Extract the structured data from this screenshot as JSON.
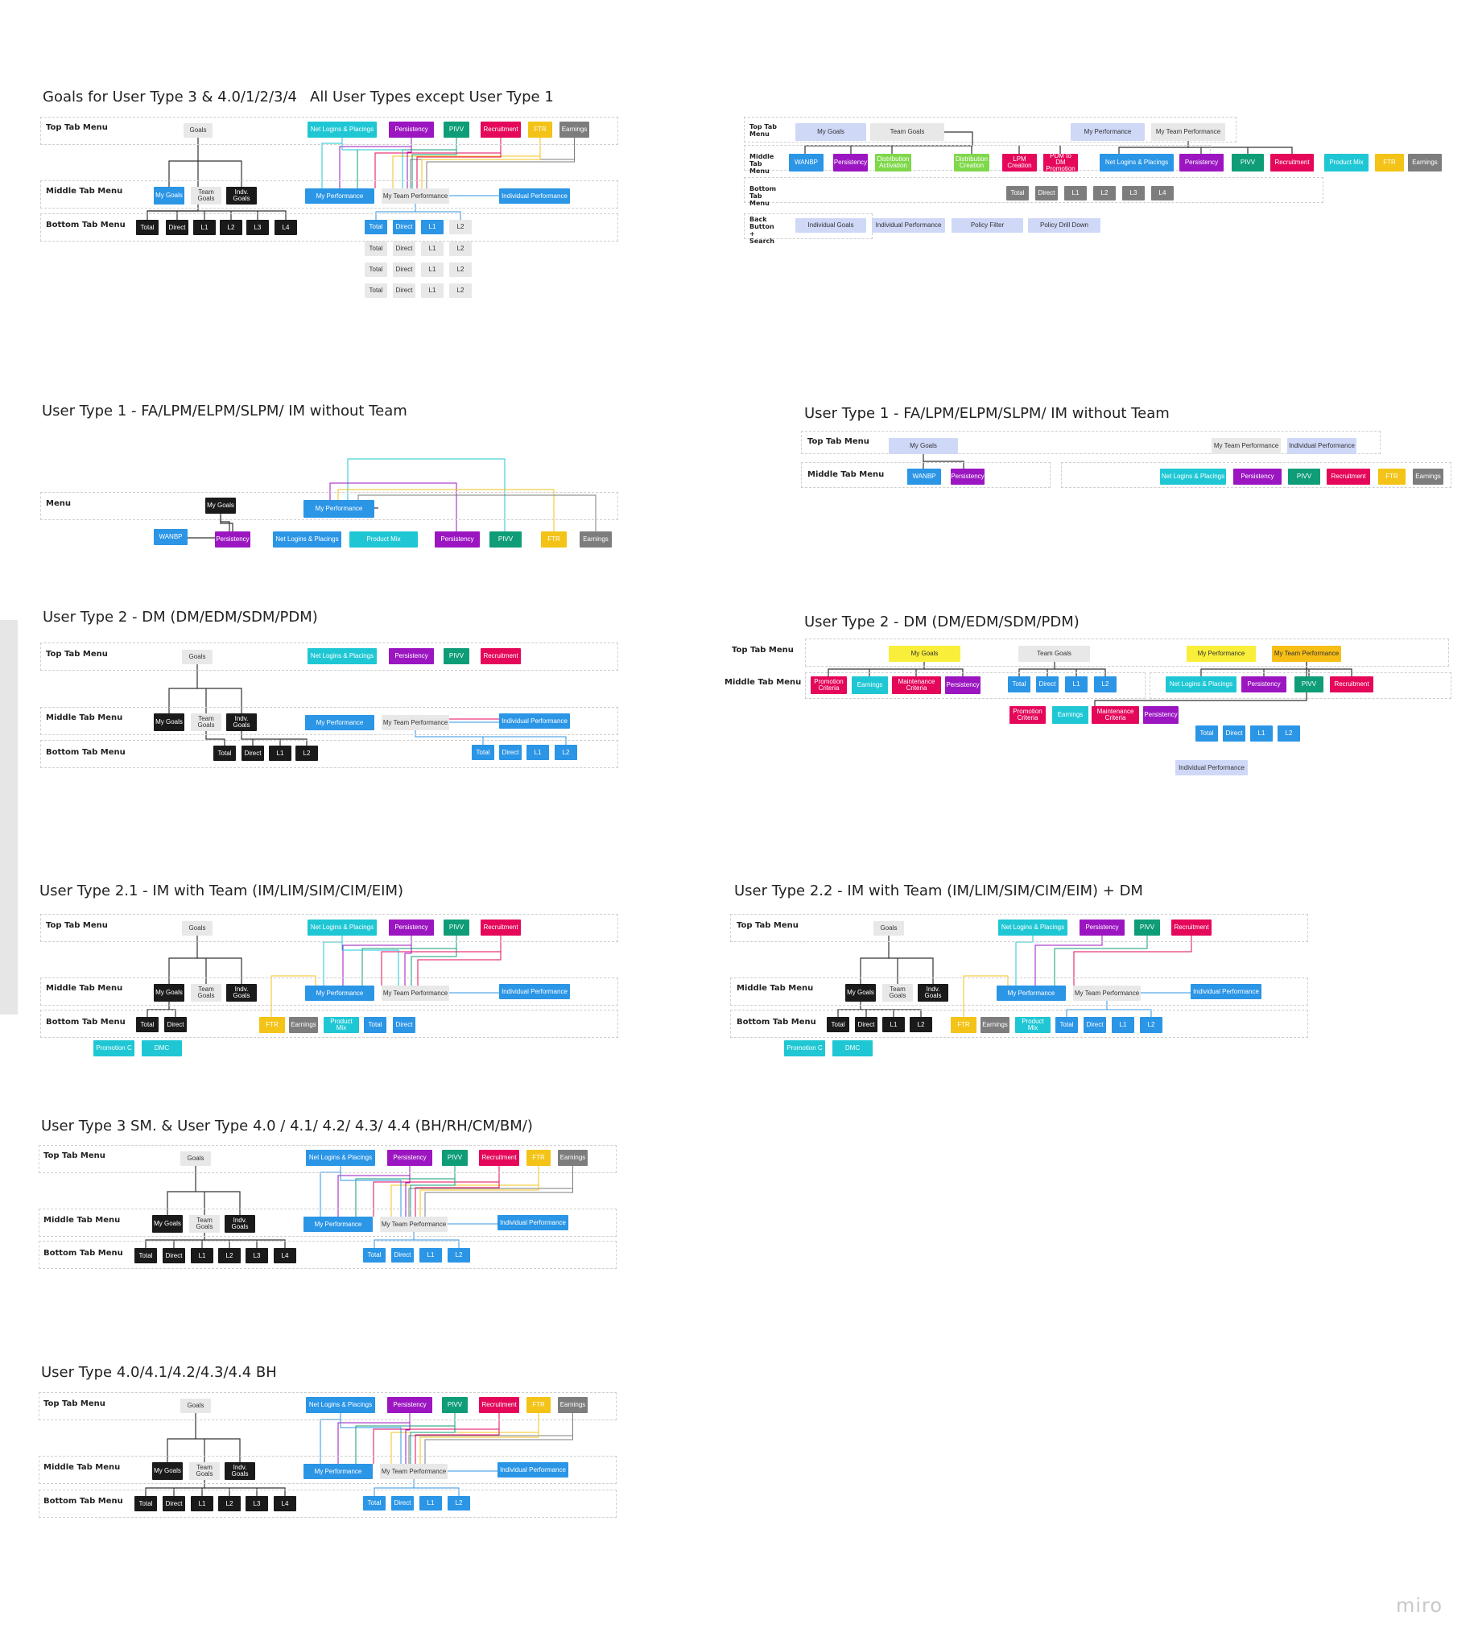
{
  "watermark": "miro",
  "colors": {
    "cyan": "#1fc7d4",
    "purple": "#9b16c1",
    "green": "#0f9d77",
    "red": "#e5075a",
    "yellow": "#f3c318",
    "gray": "#7d7d7d",
    "black": "#1a1a1a",
    "blue": "#2b95e6",
    "light": "#e8e8e8",
    "lilac": "#cfd8f7",
    "brightyellow": "#f9ee3a",
    "orange": "#f7be16",
    "lime": "#7fd84a"
  },
  "sections": [
    {
      "titles": [
        "Goals for User Type 3 & 4.0/1/2/3/4",
        "All User Types except User Type 1"
      ],
      "rows": [
        "Top Tab Menu",
        "Middle Tab Menu",
        "Bottom Tab Menu"
      ],
      "nodes": [
        {
          "t": "Goals",
          "c": "light"
        },
        {
          "t": "Net Logins & Placings",
          "c": "cyan"
        },
        {
          "t": "Persistency",
          "c": "purple"
        },
        {
          "t": "PIVV",
          "c": "green"
        },
        {
          "t": "Recruitment",
          "c": "red"
        },
        {
          "t": "FTR",
          "c": "yellow"
        },
        {
          "t": "Earnings",
          "c": "gray"
        },
        {
          "t": "My Goals",
          "c": "blue"
        },
        {
          "t": "Team Goals",
          "c": "light"
        },
        {
          "t": "Indv. Goals",
          "c": "black"
        },
        {
          "t": "My Performance",
          "c": "blue"
        },
        {
          "t": "My Team Performance",
          "c": "light"
        },
        {
          "t": "Individual Performance",
          "c": "blue"
        },
        {
          "t": "Total",
          "c": "black"
        },
        {
          "t": "Direct",
          "c": "black"
        },
        {
          "t": "L1",
          "c": "black"
        },
        {
          "t": "L2",
          "c": "black"
        },
        {
          "t": "L3",
          "c": "black"
        },
        {
          "t": "L4",
          "c": "black"
        },
        {
          "t": "Total",
          "c": "blue"
        },
        {
          "t": "Direct",
          "c": "blue"
        },
        {
          "t": "L1",
          "c": "blue"
        },
        {
          "t": "L2",
          "c": "light"
        },
        {
          "t": "Total",
          "c": "light"
        },
        {
          "t": "Direct",
          "c": "light"
        },
        {
          "t": "L1",
          "c": "light"
        },
        {
          "t": "L2",
          "c": "light"
        },
        {
          "t": "Total",
          "c": "light"
        },
        {
          "t": "Direct",
          "c": "light"
        },
        {
          "t": "L1",
          "c": "light"
        },
        {
          "t": "L2",
          "c": "light"
        },
        {
          "t": "Total",
          "c": "light"
        },
        {
          "t": "Direct",
          "c": "light"
        },
        {
          "t": "L1",
          "c": "light"
        },
        {
          "t": "L2",
          "c": "light"
        }
      ]
    },
    {
      "titles": [],
      "rows": [
        "Top Tab Menu",
        "Middle Tab Menu",
        "Bottom Tab Menu",
        "Back Button + Search"
      ],
      "nodes": [
        {
          "t": "My Goals",
          "c": "lilac"
        },
        {
          "t": "Team Goals",
          "c": "light"
        },
        {
          "t": "My Performance",
          "c": "lilac"
        },
        {
          "t": "My Team Performance",
          "c": "light"
        },
        {
          "t": "WANBP",
          "c": "blue"
        },
        {
          "t": "Persistency",
          "c": "purple"
        },
        {
          "t": "Distribution Activation",
          "c": "lime"
        },
        {
          "t": "Distribution Creation",
          "c": "lime"
        },
        {
          "t": "LPM Creation",
          "c": "red"
        },
        {
          "t": "PDM to DM Promotion",
          "c": "red"
        },
        {
          "t": "Net Logins & Placings",
          "c": "blue"
        },
        {
          "t": "Persistency",
          "c": "purple"
        },
        {
          "t": "PIVV",
          "c": "green"
        },
        {
          "t": "Recruitment",
          "c": "red"
        },
        {
          "t": "Product Mix",
          "c": "cyan"
        },
        {
          "t": "FTR",
          "c": "yellow"
        },
        {
          "t": "Earnings",
          "c": "gray"
        },
        {
          "t": "Total",
          "c": "gray"
        },
        {
          "t": "Direct",
          "c": "gray"
        },
        {
          "t": "L1",
          "c": "gray"
        },
        {
          "t": "L2",
          "c": "gray"
        },
        {
          "t": "L3",
          "c": "gray"
        },
        {
          "t": "L4",
          "c": "gray"
        },
        {
          "t": "Individual Goals",
          "c": "lilac"
        },
        {
          "t": "Individual Performance",
          "c": "lilac"
        },
        {
          "t": "Policy Filter",
          "c": "lilac"
        },
        {
          "t": "Policy Drill Down",
          "c": "lilac"
        }
      ]
    },
    {
      "titles": [
        "User Type 1 - FA/LPM/ELPM/SLPM/ IM without Team"
      ],
      "rows": [
        "Menu"
      ],
      "nodes": [
        {
          "t": "My Goals",
          "c": "black"
        },
        {
          "t": "My Performance",
          "c": "blue"
        },
        {
          "t": "WANBP",
          "c": "blue"
        },
        {
          "t": "Persistency",
          "c": "purple"
        },
        {
          "t": "Net Logins & Placings",
          "c": "blue"
        },
        {
          "t": "Product Mix",
          "c": "cyan"
        },
        {
          "t": "Persistency",
          "c": "purple"
        },
        {
          "t": "PIVV",
          "c": "green"
        },
        {
          "t": "FTR",
          "c": "yellow"
        },
        {
          "t": "Earnings",
          "c": "gray"
        }
      ]
    },
    {
      "titles": [
        "User Type 1 - FA/LPM/ELPM/SLPM/ IM without Team"
      ],
      "rows": [
        "Top Tab Menu",
        "Middle Tab Menu"
      ],
      "nodes": [
        {
          "t": "My Goals",
          "c": "lilac"
        },
        {
          "t": "My Team Performance",
          "c": "light"
        },
        {
          "t": "Individual Performance",
          "c": "lilac"
        },
        {
          "t": "WANBP",
          "c": "blue"
        },
        {
          "t": "Persistency",
          "c": "purple"
        },
        {
          "t": "Net Logins & Placings",
          "c": "cyan"
        },
        {
          "t": "Persistency",
          "c": "purple"
        },
        {
          "t": "PIVV",
          "c": "green"
        },
        {
          "t": "Recruitment",
          "c": "red"
        },
        {
          "t": "FTR",
          "c": "yellow"
        },
        {
          "t": "Earnings",
          "c": "gray"
        }
      ]
    },
    {
      "titles": [
        "User Type 2 - DM (DM/EDM/SDM/PDM)"
      ],
      "rows": [
        "Top Tab Menu",
        "Middle Tab Menu",
        "Bottom Tab Menu"
      ],
      "nodes": [
        {
          "t": "Goals",
          "c": "light"
        },
        {
          "t": "Net Logins & Placings",
          "c": "cyan"
        },
        {
          "t": "Persistency",
          "c": "purple"
        },
        {
          "t": "PIVV",
          "c": "green"
        },
        {
          "t": "Recruitment",
          "c": "red"
        },
        {
          "t": "My Goals",
          "c": "black"
        },
        {
          "t": "Team Goals",
          "c": "light"
        },
        {
          "t": "Indv. Goals",
          "c": "black"
        },
        {
          "t": "My Performance",
          "c": "blue"
        },
        {
          "t": "My Team Performance",
          "c": "light"
        },
        {
          "t": "Individual Performance",
          "c": "blue"
        },
        {
          "t": "Total",
          "c": "black"
        },
        {
          "t": "Direct",
          "c": "black"
        },
        {
          "t": "L1",
          "c": "black"
        },
        {
          "t": "L2",
          "c": "black"
        },
        {
          "t": "Total",
          "c": "blue"
        },
        {
          "t": "Direct",
          "c": "blue"
        },
        {
          "t": "L1",
          "c": "blue"
        },
        {
          "t": "L2",
          "c": "blue"
        }
      ]
    },
    {
      "titles": [
        "User Type 2 - DM (DM/EDM/SDM/PDM)"
      ],
      "rows": [
        "Top Tab Menu",
        "Middle Tab Menu"
      ],
      "nodes": [
        {
          "t": "My Goals",
          "c": "brightyellow"
        },
        {
          "t": "Team Goals",
          "c": "light"
        },
        {
          "t": "My Performance",
          "c": "brightyellow"
        },
        {
          "t": "My Team Performance",
          "c": "orange"
        },
        {
          "t": "Promotion Criteria",
          "c": "red"
        },
        {
          "t": "Earnings",
          "c": "cyan"
        },
        {
          "t": "Maintenance Criteria",
          "c": "red"
        },
        {
          "t": "Persistency",
          "c": "purple"
        },
        {
          "t": "Total",
          "c": "blue"
        },
        {
          "t": "Direct",
          "c": "blue"
        },
        {
          "t": "L1",
          "c": "blue"
        },
        {
          "t": "L2",
          "c": "blue"
        },
        {
          "t": "Net Logins & Placings",
          "c": "cyan"
        },
        {
          "t": "Persistency",
          "c": "purple"
        },
        {
          "t": "PIVV",
          "c": "green"
        },
        {
          "t": "Recruitment",
          "c": "red"
        },
        {
          "t": "Promotion Criteria",
          "c": "red"
        },
        {
          "t": "Earnings",
          "c": "cyan"
        },
        {
          "t": "Maintenance Criteria",
          "c": "red"
        },
        {
          "t": "Persistency",
          "c": "purple"
        },
        {
          "t": "Total",
          "c": "blue"
        },
        {
          "t": "Direct",
          "c": "blue"
        },
        {
          "t": "L1",
          "c": "blue"
        },
        {
          "t": "L2",
          "c": "blue"
        },
        {
          "t": "Individual Performance",
          "c": "lilac"
        }
      ]
    },
    {
      "titles": [
        "User Type 2.1 - IM with Team (IM/LIM/SIM/CIM/EIM)"
      ],
      "rows": [
        "Top Tab Menu",
        "Middle Tab Menu",
        "Bottom Tab Menu"
      ],
      "nodes": [
        {
          "t": "Goals",
          "c": "light"
        },
        {
          "t": "Net Logins & Placings",
          "c": "cyan"
        },
        {
          "t": "Persistency",
          "c": "purple"
        },
        {
          "t": "PIVV",
          "c": "green"
        },
        {
          "t": "Recruitment",
          "c": "red"
        },
        {
          "t": "My Goals",
          "c": "black"
        },
        {
          "t": "Team Goals",
          "c": "light"
        },
        {
          "t": "Indv. Goals",
          "c": "black"
        },
        {
          "t": "My Performance",
          "c": "blue"
        },
        {
          "t": "My Team Performance",
          "c": "light"
        },
        {
          "t": "Individual Performance",
          "c": "blue"
        },
        {
          "t": "Total",
          "c": "black"
        },
        {
          "t": "Direct",
          "c": "black"
        },
        {
          "t": "FTR",
          "c": "yellow"
        },
        {
          "t": "Earnings",
          "c": "gray"
        },
        {
          "t": "Product Mix",
          "c": "cyan"
        },
        {
          "t": "Total",
          "c": "blue"
        },
        {
          "t": "Direct",
          "c": "blue"
        },
        {
          "t": "Promotion C",
          "c": "cyan"
        },
        {
          "t": "DMC",
          "c": "cyan"
        }
      ]
    },
    {
      "titles": [
        "User Type 2.2 - IM with Team (IM/LIM/SIM/CIM/EIM) + DM"
      ],
      "rows": [
        "Top Tab Menu",
        "Middle Tab Menu",
        "Bottom Tab Menu"
      ],
      "nodes": [
        {
          "t": "Goals",
          "c": "light"
        },
        {
          "t": "Net Logins & Placings",
          "c": "cyan"
        },
        {
          "t": "Persistency",
          "c": "purple"
        },
        {
          "t": "PIVV",
          "c": "green"
        },
        {
          "t": "Recruitment",
          "c": "red"
        },
        {
          "t": "My Goals",
          "c": "black"
        },
        {
          "t": "Team Goals",
          "c": "light"
        },
        {
          "t": "Indv. Goals",
          "c": "black"
        },
        {
          "t": "My Performance",
          "c": "blue"
        },
        {
          "t": "My Team Performance",
          "c": "light"
        },
        {
          "t": "Individual Performance",
          "c": "blue"
        },
        {
          "t": "Total",
          "c": "black"
        },
        {
          "t": "Direct",
          "c": "black"
        },
        {
          "t": "L1",
          "c": "black"
        },
        {
          "t": "L2",
          "c": "black"
        },
        {
          "t": "FTR",
          "c": "yellow"
        },
        {
          "t": "Earnings",
          "c": "gray"
        },
        {
          "t": "Product Mix",
          "c": "cyan"
        },
        {
          "t": "Total",
          "c": "blue"
        },
        {
          "t": "Direct",
          "c": "blue"
        },
        {
          "t": "L1",
          "c": "blue"
        },
        {
          "t": "L2",
          "c": "blue"
        },
        {
          "t": "Promotion C",
          "c": "cyan"
        },
        {
          "t": "DMC",
          "c": "cyan"
        }
      ]
    },
    {
      "titles": [
        "User Type 3 SM. & User Type 4.0 / 4.1/ 4.2/ 4.3/ 4.4 (BH/RH/CM/BM/)"
      ],
      "rows": [
        "Top Tab Menu",
        "Middle Tab Menu",
        "Bottom Tab Menu"
      ],
      "nodes": [
        {
          "t": "Goals",
          "c": "light"
        },
        {
          "t": "Net Logins & Placings",
          "c": "blue"
        },
        {
          "t": "Persistency",
          "c": "purple"
        },
        {
          "t": "PIVV",
          "c": "green"
        },
        {
          "t": "Recruitment",
          "c": "red"
        },
        {
          "t": "FTR",
          "c": "yellow"
        },
        {
          "t": "Earnings",
          "c": "gray"
        },
        {
          "t": "My Goals",
          "c": "black"
        },
        {
          "t": "Team Goals",
          "c": "light"
        },
        {
          "t": "Indv. Goals",
          "c": "black"
        },
        {
          "t": "My Performance",
          "c": "blue"
        },
        {
          "t": "My Team Performance",
          "c": "light"
        },
        {
          "t": "Individual Performance",
          "c": "blue"
        },
        {
          "t": "Total",
          "c": "black"
        },
        {
          "t": "Direct",
          "c": "black"
        },
        {
          "t": "L1",
          "c": "black"
        },
        {
          "t": "L2",
          "c": "black"
        },
        {
          "t": "L3",
          "c": "black"
        },
        {
          "t": "L4",
          "c": "black"
        },
        {
          "t": "Total",
          "c": "blue"
        },
        {
          "t": "Direct",
          "c": "blue"
        },
        {
          "t": "L1",
          "c": "blue"
        },
        {
          "t": "L2",
          "c": "blue"
        }
      ]
    },
    {
      "titles": [
        "User Type 4.0/4.1/4.2/4.3/4.4 BH"
      ],
      "rows": [
        "Top Tab Menu",
        "Middle Tab Menu",
        "Bottom Tab Menu"
      ],
      "nodes": [
        {
          "t": "Goals",
          "c": "light"
        },
        {
          "t": "Net Logins & Placings",
          "c": "blue"
        },
        {
          "t": "Persistency",
          "c": "purple"
        },
        {
          "t": "PIVV",
          "c": "green"
        },
        {
          "t": "Recruitment",
          "c": "red"
        },
        {
          "t": "FTR",
          "c": "yellow"
        },
        {
          "t": "Earnings",
          "c": "gray"
        },
        {
          "t": "My Goals",
          "c": "black"
        },
        {
          "t": "Team Goals",
          "c": "light"
        },
        {
          "t": "Indv. Goals",
          "c": "black"
        },
        {
          "t": "My Performance",
          "c": "blue"
        },
        {
          "t": "My Team Performance",
          "c": "light"
        },
        {
          "t": "Individual Performance",
          "c": "blue"
        },
        {
          "t": "Total",
          "c": "black"
        },
        {
          "t": "Direct",
          "c": "black"
        },
        {
          "t": "L1",
          "c": "black"
        },
        {
          "t": "L2",
          "c": "black"
        },
        {
          "t": "L3",
          "c": "black"
        },
        {
          "t": "L4",
          "c": "black"
        },
        {
          "t": "Total",
          "c": "blue"
        },
        {
          "t": "Direct",
          "c": "blue"
        },
        {
          "t": "L1",
          "c": "blue"
        },
        {
          "t": "L2",
          "c": "blue"
        }
      ]
    }
  ]
}
